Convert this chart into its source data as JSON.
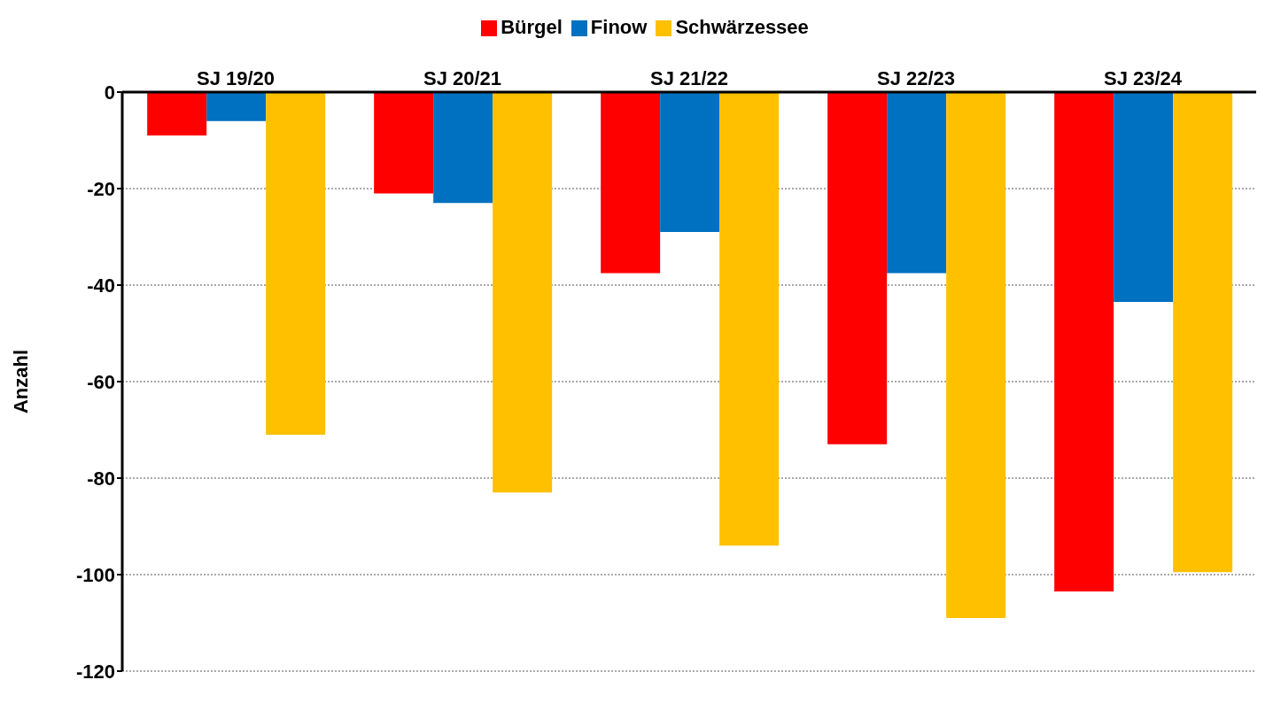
{
  "chart_data": {
    "type": "bar",
    "ylabel": "Anzahl",
    "categories": [
      "SJ 19/20",
      "SJ 20/21",
      "SJ 21/22",
      "SJ 22/23",
      "SJ 23/24"
    ],
    "series": [
      {
        "name": "Bürgel",
        "color": "#ff0000",
        "values": [
          -9,
          -21,
          -37.5,
          -73,
          -103.5
        ]
      },
      {
        "name": "Finow",
        "color": "#0070c0",
        "values": [
          -6,
          -23,
          -29,
          -37.5,
          -43.5
        ]
      },
      {
        "name": "Schwärzessee",
        "color": "#ffc000",
        "values": [
          -71,
          -83,
          -94,
          -109,
          -99.5
        ]
      }
    ],
    "ylim": [
      -120,
      0
    ],
    "yticks": [
      -120,
      -100,
      -80,
      -60,
      -40,
      -20,
      0
    ],
    "grid": "y",
    "legend": "top"
  }
}
